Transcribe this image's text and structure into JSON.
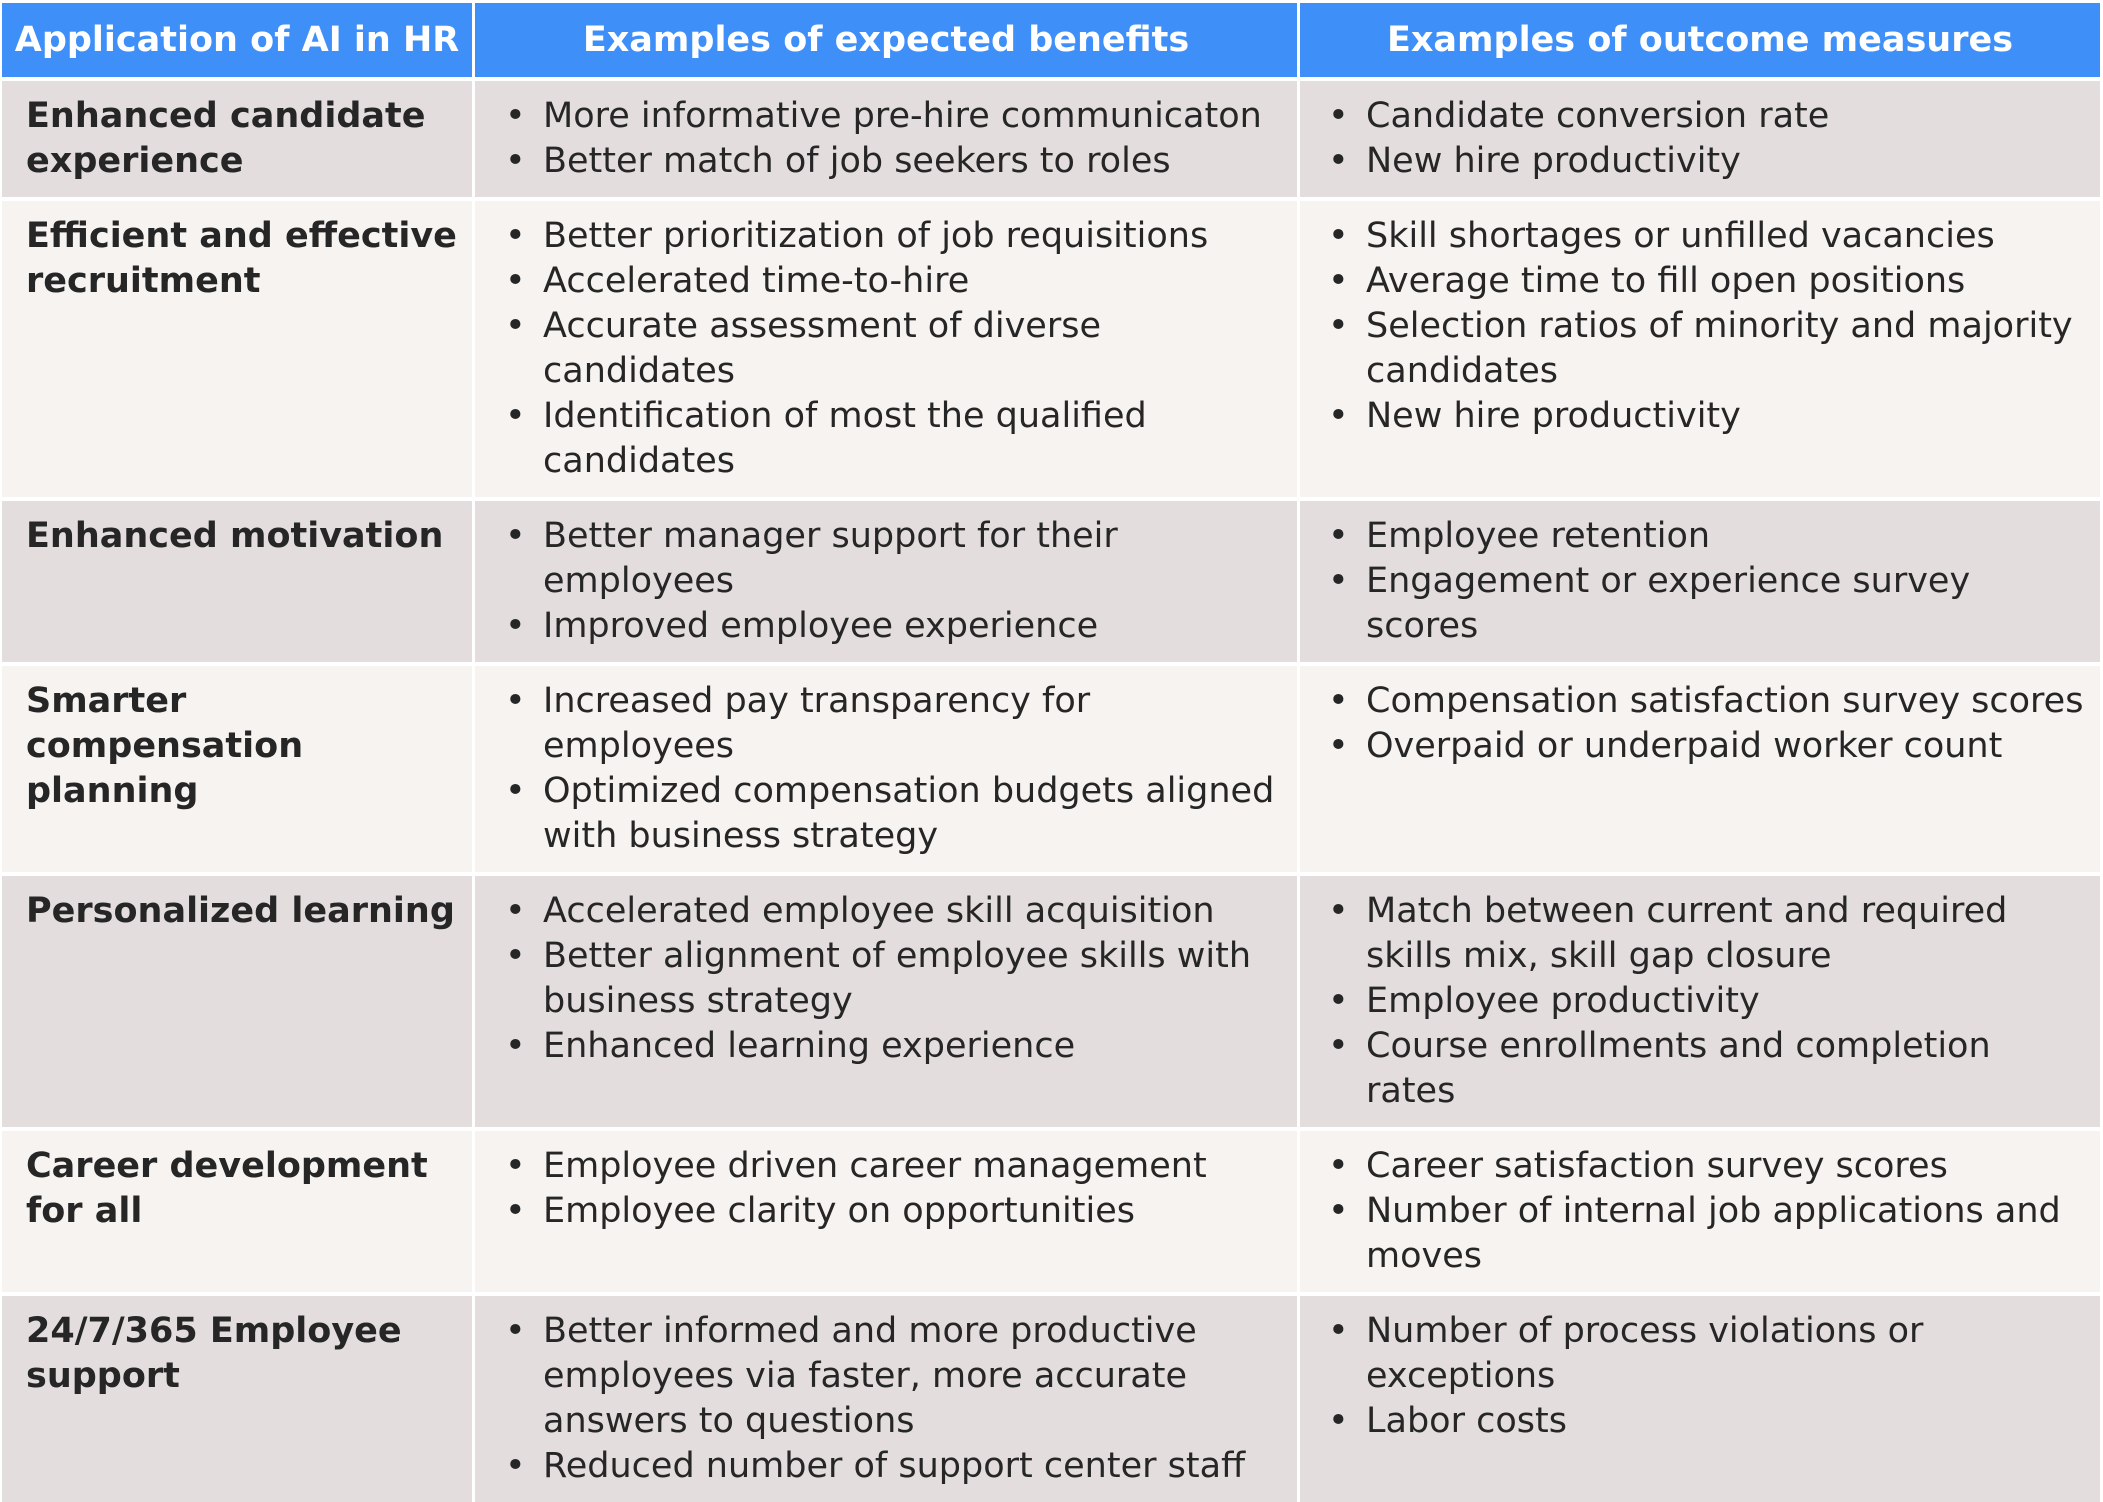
{
  "headers": {
    "application": "Application of AI in HR",
    "benefits": "Examples of expected benefits",
    "measures": "Examples of outcome measures"
  },
  "rows": [
    {
      "application": "Enhanced candidate experience",
      "benefits": [
        "More informative pre-hire communicaton",
        "Better match of job seekers to roles"
      ],
      "measures": [
        "Candidate conversion rate",
        "New hire productivity"
      ]
    },
    {
      "application": "Efficient and effective recruitment",
      "benefits": [
        "Better prioritization of job requisitions",
        "Accelerated time-to-hire",
        "Accurate assessment of diverse candidates",
        "Identification of most the qualified candidates"
      ],
      "measures": [
        "Skill shortages or unfilled vacancies",
        "Average time to fill open positions",
        "Selection ratios of minority and majority candidates",
        "New hire productivity"
      ]
    },
    {
      "application": "Enhanced motivation",
      "benefits": [
        "Better manager support for their employees",
        "Improved employee experience"
      ],
      "measures": [
        "Employee retention",
        "Engagement or experience survey scores"
      ]
    },
    {
      "application": "Smarter compensation planning",
      "benefits": [
        "Increased pay transparency for employees",
        "Optimized compensation budgets aligned with business strategy"
      ],
      "measures": [
        "Compensation satisfaction survey scores",
        "Overpaid or underpaid worker count"
      ]
    },
    {
      "application": "Personalized learning",
      "benefits": [
        "Accelerated employee skill acquisition",
        "Better alignment of employee skills with business strategy",
        "Enhanced learning experience"
      ],
      "measures": [
        "Match between current and required skills mix, skill gap closure",
        "Employee productivity",
        "Course enrollments and completion rates"
      ]
    },
    {
      "application": "Career development for all",
      "benefits": [
        "Employee driven career management",
        "Employee clarity on opportunities"
      ],
      "measures": [
        "Career satisfaction survey scores",
        "Number of internal job applications and moves"
      ]
    },
    {
      "application": "24/7/365 Employee support",
      "benefits": [
        "Better informed and more productive employees via faster, more accurate answers to questions",
        "Reduced number of support center staff"
      ],
      "measures": [
        "Number of process violations or exceptions",
        "Labor costs"
      ]
    }
  ],
  "colors": {
    "header_bg": "#3f8ff8",
    "row_dark": "#e3dedd",
    "row_light": "#f6f3f1"
  }
}
